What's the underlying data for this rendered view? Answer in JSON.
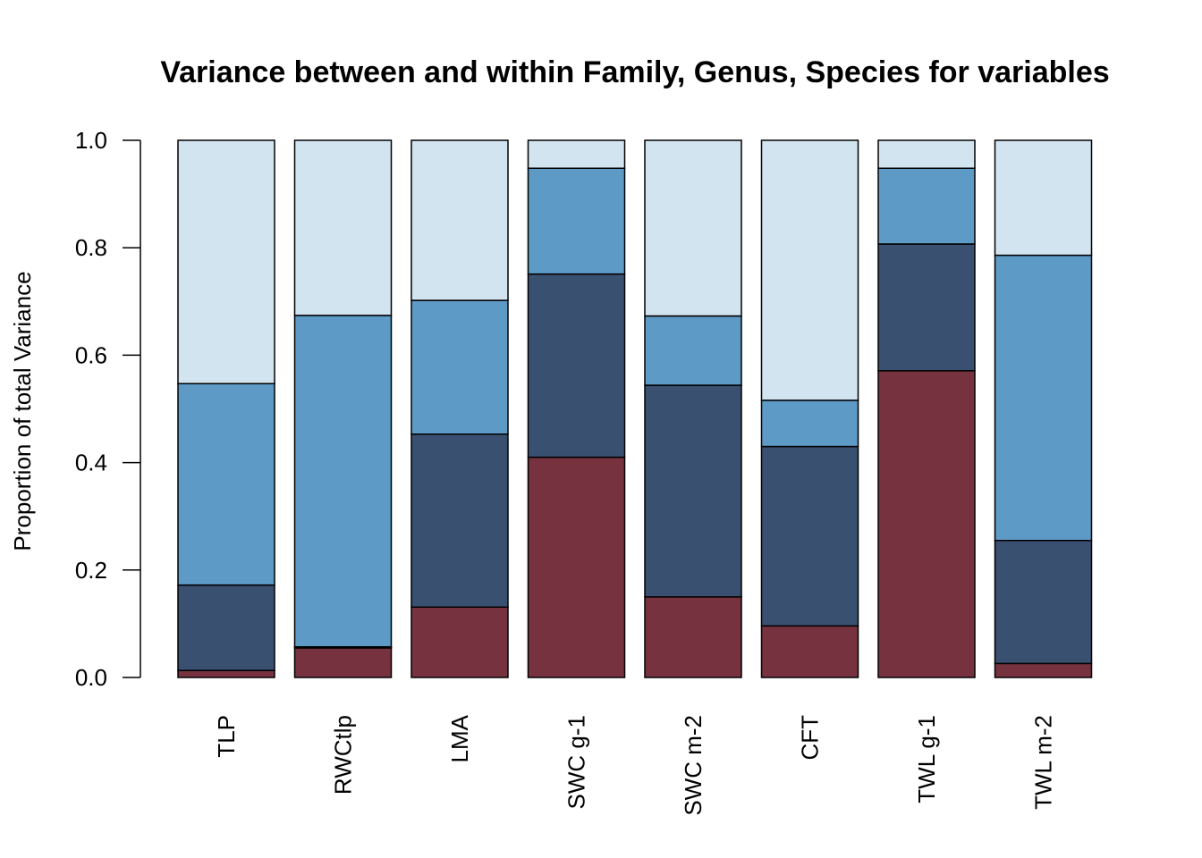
{
  "chart_data": {
    "type": "bar",
    "stacked": true,
    "title": "Variance between and within Family, Genus, Species for variables",
    "xlabel": "",
    "ylabel": "Proportion of total Variance",
    "ylim": [
      0,
      1
    ],
    "yticks": [
      "0.0",
      "0.2",
      "0.4",
      "0.6",
      "0.8",
      "1.0"
    ],
    "categories": [
      "TLP",
      "RWCtlp",
      "LMA",
      "SWC g-1",
      "SWC m-2",
      "CFT",
      "TWL g-1",
      "TWL m-2"
    ],
    "series": [
      {
        "color": "#76333f",
        "values": [
          0.013,
          0.055,
          0.131,
          0.41,
          0.15,
          0.096,
          0.571,
          0.026
        ]
      },
      {
        "color": "#3a5070",
        "values": [
          0.159,
          0.002,
          0.322,
          0.341,
          0.394,
          0.334,
          0.236,
          0.229
        ]
      },
      {
        "color": "#5e9ac6",
        "values": [
          0.375,
          0.617,
          0.249,
          0.197,
          0.129,
          0.086,
          0.141,
          0.531
        ]
      },
      {
        "color": "#d3e4f1",
        "values": [
          0.453,
          0.326,
          0.298,
          0.052,
          0.327,
          0.484,
          0.052,
          0.214
        ]
      }
    ],
    "grid": false,
    "legend": "none"
  }
}
